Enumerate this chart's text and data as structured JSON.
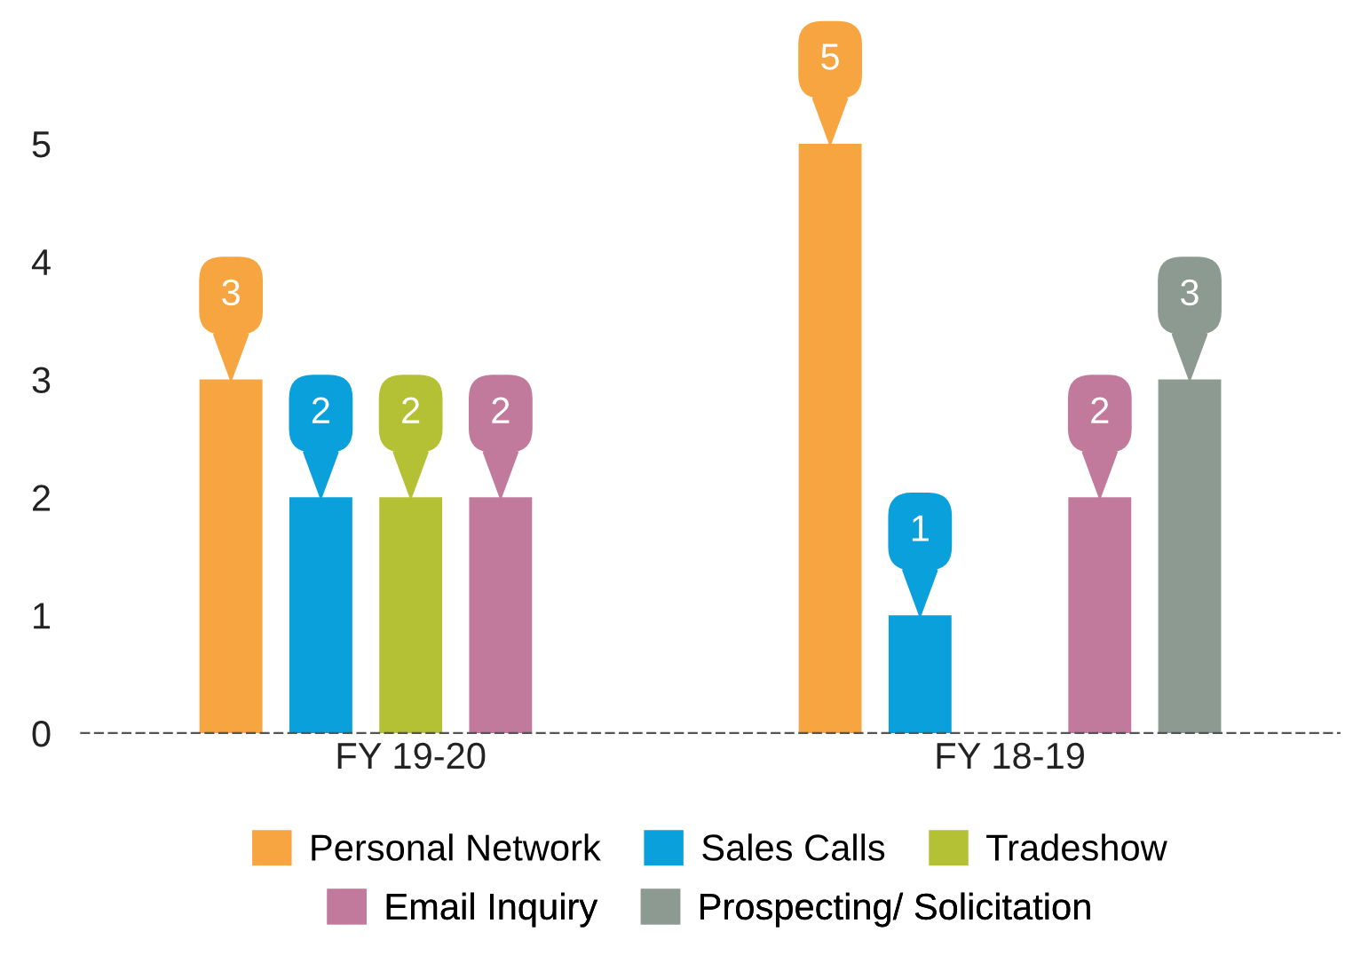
{
  "chart_data": {
    "type": "bar",
    "categories": [
      "FY 19-20",
      "FY 18-19"
    ],
    "series": [
      {
        "name": "Personal Network",
        "color": "#f7a541",
        "values": [
          3,
          5
        ]
      },
      {
        "name": "Sales Calls",
        "color": "#0aa0dc",
        "values": [
          2,
          1
        ]
      },
      {
        "name": "Tradeshow",
        "color": "#b5c135",
        "values": [
          2,
          null
        ]
      },
      {
        "name": "Email Inquiry",
        "color": "#c17a9c",
        "values": [
          2,
          2
        ]
      },
      {
        "name": "Prospecting/ Solicitation",
        "color": "#8c9a91",
        "values": [
          null,
          3
        ]
      }
    ],
    "ylim": [
      0,
      5
    ],
    "yticks": [
      0,
      1,
      2,
      3,
      4,
      5
    ],
    "data_labels": true,
    "grid": false,
    "legend": "bottom"
  }
}
